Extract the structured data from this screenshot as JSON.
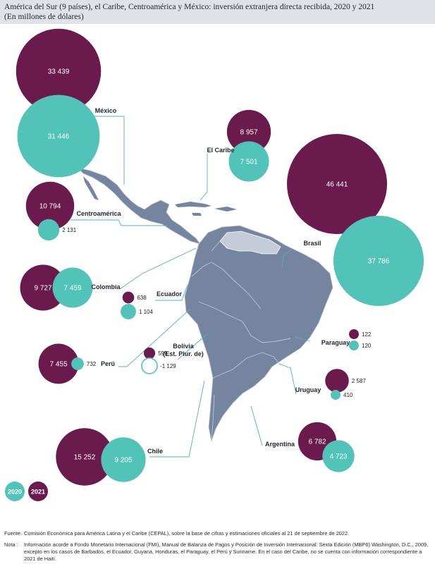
{
  "header": {
    "title": "América del Sur (9 países), el Caribe, Centroamérica y México: inversión extranjera directa recibida, 2020 y 2021",
    "subtitle": "(En millones de dólares)"
  },
  "colors": {
    "y2020": "#52c3b9",
    "y2021": "#6a1a4c",
    "land": "#7585a0",
    "land_light": "#c3ccd8",
    "border": "#bcc6d4",
    "leader": "#4fb3bf"
  },
  "chart_data": {
    "type": "bubble-map",
    "title": "América del Sur (9 países), el Caribe, Centroamérica y México: inversión extranjera directa recibida, 2020 y 2021",
    "subtitle": "(En millones de dólares)",
    "legend": [
      "2020",
      "2021"
    ],
    "regions": [
      {
        "name": "México",
        "v2021": 33439,
        "l2021": "33 439",
        "v2020": 31446,
        "l2020": "31 446"
      },
      {
        "name": "El Caribe",
        "v2021": 8957,
        "l2021": "8 957",
        "v2020": 7501,
        "l2020": "7 501"
      },
      {
        "name": "Brasil",
        "v2021": 46441,
        "l2021": "46 441",
        "v2020": 37786,
        "l2020": "37 786"
      },
      {
        "name": "Centroamérica",
        "v2021": 10794,
        "l2021": "10 794",
        "v2020": 2131,
        "l2020": "2 131"
      },
      {
        "name": "Colombia",
        "v2021": 9727,
        "l2021": "9 727",
        "v2020": 7459,
        "l2020": "7 459"
      },
      {
        "name": "Ecuador",
        "v2021": 638,
        "l2021": "638",
        "v2020": 1104,
        "l2020": "1 104"
      },
      {
        "name": "Perú",
        "v2021": 7455,
        "l2021": "7 455",
        "v2020": 732,
        "l2020": "732"
      },
      {
        "name": "Bolivia (Est. Plur. de)",
        "v2021": 599,
        "l2021": "599",
        "v2020": -1129,
        "l2020": "-1 129"
      },
      {
        "name": "Paraguay",
        "v2021": 122,
        "l2021": "122",
        "v2020": 120,
        "l2020": "120"
      },
      {
        "name": "Uruguay",
        "v2021": 2587,
        "l2021": "2 587",
        "v2020": 410,
        "l2020": "410"
      },
      {
        "name": "Chile",
        "v2021": 15252,
        "l2021": "15 252",
        "v2020": 9205,
        "l2020": "9 205"
      },
      {
        "name": "Argentina",
        "v2021": 6782,
        "l2021": "6 782",
        "v2020": 4723,
        "l2020": "4 723"
      }
    ]
  },
  "footer": {
    "source_label": "Fuente:",
    "source_text": "Comisión Económica para América Latina y el Caribe (CEPAL), sobre la base de cifras y estimaciones oficiales al 21 de septiembre de 2022.",
    "note_label": "Nota :",
    "note_text": "Información acorde a Fondo Monetario Internacional (FMI), Manual de Balanza de Pagos y Posición de Inversión Internacional: Sexta Edición (MBP6) Washington, D.C., 2009, excepto en los casos de Barbados, el Ecuador, Guyana, Honduras, el Paraguay, el Perú y Suriname. En el caso del Caribe, no se cuenta con información correspondiente a 2021 de Haití."
  }
}
